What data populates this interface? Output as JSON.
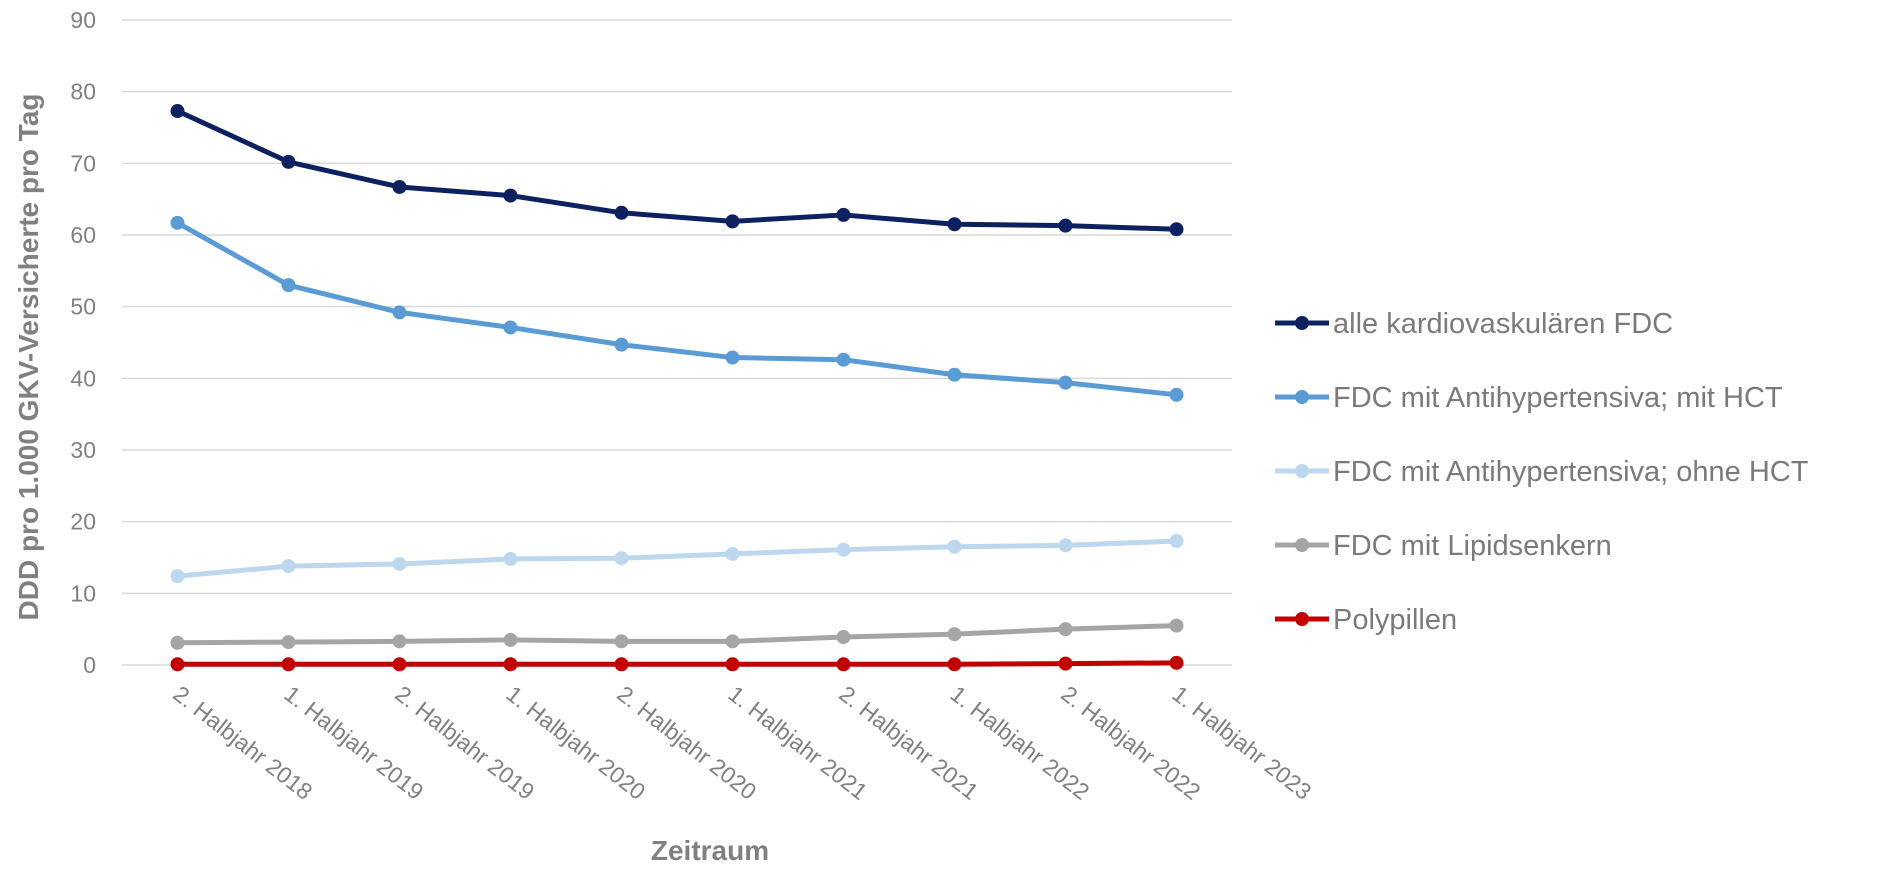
{
  "chart_data": {
    "type": "line",
    "title": "",
    "xlabel": "Zeitraum",
    "ylabel": "DDD pro 1.000 GKV-Versicherte pro Tag",
    "ylim": [
      0,
      90
    ],
    "yticks": [
      0,
      10,
      20,
      30,
      40,
      50,
      60,
      70,
      80,
      90
    ],
    "grid": true,
    "legend_position": "right",
    "categories": [
      "2. Halbjahr 2018",
      "1. Halbjahr 2019",
      "2. Halbjahr 2019",
      "1. Halbjahr 2020",
      "2. Halbjahr 2020",
      "1. Halbjahr 2021",
      "2. Halbjahr 2021",
      "1. Halbjahr 2022",
      "2. Halbjahr 2022",
      "1. Halbjahr 2023"
    ],
    "series": [
      {
        "name": "alle kardiovaskulären FDC",
        "color": "#0d2160",
        "values": [
          77.3,
          70.2,
          66.7,
          65.5,
          63.1,
          61.9,
          62.8,
          61.5,
          61.3,
          60.8
        ]
      },
      {
        "name": "FDC mit Antihypertensiva; mit HCT",
        "color": "#5b9bd5",
        "values": [
          61.7,
          53.0,
          49.2,
          47.1,
          44.7,
          42.9,
          42.6,
          40.5,
          39.4,
          37.7
        ]
      },
      {
        "name": "FDC mit Antihypertensiva; ohne HCT",
        "color": "#bdd7ee",
        "values": [
          12.4,
          13.8,
          14.1,
          14.8,
          14.9,
          15.5,
          16.1,
          16.5,
          16.7,
          17.3
        ]
      },
      {
        "name": "FDC mit Lipidsenkern",
        "color": "#a5a5a5",
        "values": [
          3.1,
          3.2,
          3.3,
          3.5,
          3.3,
          3.3,
          3.9,
          4.3,
          5.0,
          5.5
        ]
      },
      {
        "name": "Polypillen",
        "color": "#c00000",
        "values": [
          0.1,
          0.1,
          0.1,
          0.1,
          0.1,
          0.1,
          0.1,
          0.1,
          0.2,
          0.3
        ]
      }
    ]
  }
}
